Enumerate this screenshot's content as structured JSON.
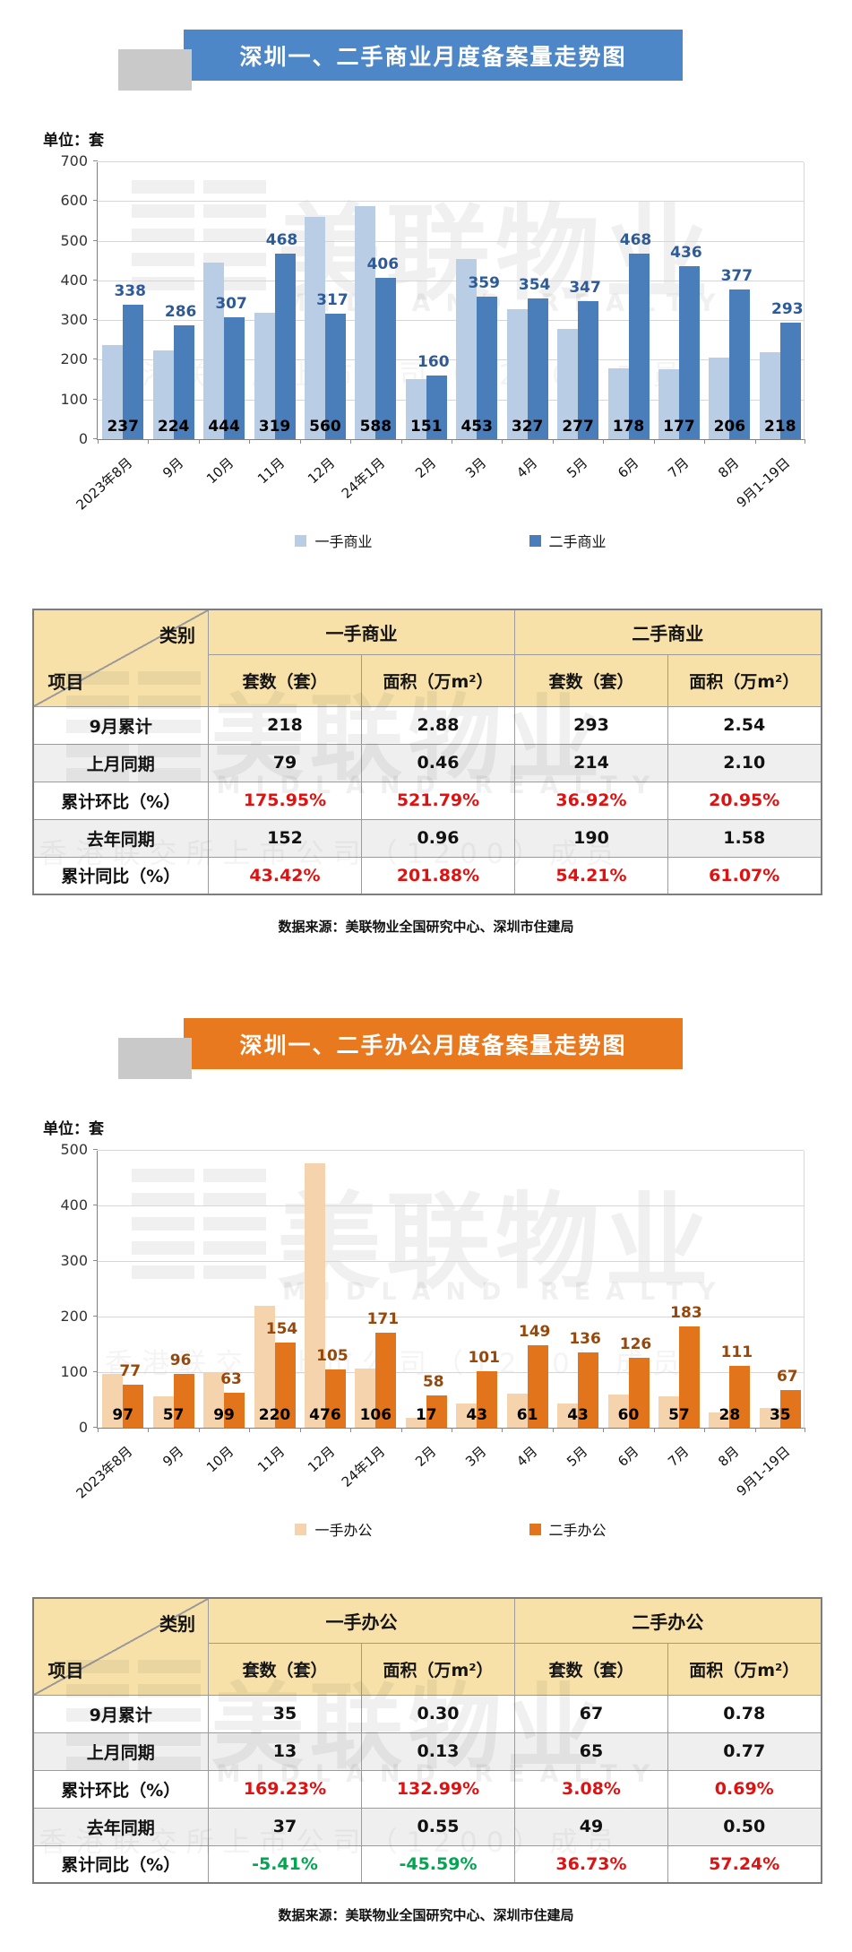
{
  "banners": [
    {
      "title": "深圳一、二手商业月度备案量走势图",
      "color": "#4e87c8"
    },
    {
      "title": "深圳一、二手办公月度备案量走势图",
      "color": "#e8791e"
    }
  ],
  "source_note": "数据来源：美联物业全国研究中心、深圳市住建局",
  "watermark": {
    "cn": "美联物业",
    "en": "MIDLAND REALTY",
    "sub": "香港联交所上市公司（1200）成员"
  },
  "chart_data": [
    {
      "type": "bar",
      "title": "深圳一、二手商业月度备案量走势图",
      "unit_label": "单位：套",
      "categories": [
        "2023年8月",
        "9月",
        "10月",
        "11月",
        "12月",
        "24年1月",
        "2月",
        "3月",
        "4月",
        "5月",
        "6月",
        "7月",
        "8月",
        "9月1-19日"
      ],
      "series": [
        {
          "name": "一手商业",
          "color": "#b9cde5",
          "label_color": "#000000",
          "label_pos": "base",
          "values": [
            237,
            224,
            444,
            319,
            560,
            588,
            151,
            453,
            327,
            277,
            178,
            177,
            206,
            218
          ]
        },
        {
          "name": "二手商业",
          "color": "#4a7ebb",
          "label_color": "#2e5b97",
          "label_pos": "top",
          "values": [
            338,
            286,
            307,
            468,
            317,
            406,
            160,
            359,
            354,
            347,
            468,
            436,
            377,
            293
          ]
        }
      ],
      "ylim": [
        0,
        700
      ],
      "yticks": [
        0,
        100,
        200,
        300,
        400,
        500,
        600,
        700
      ],
      "grid": true,
      "legend_position": "bottom"
    },
    {
      "type": "bar",
      "title": "深圳一、二手办公月度备案量走势图",
      "unit_label": "单位：套",
      "categories": [
        "2023年8月",
        "9月",
        "10月",
        "11月",
        "12月",
        "24年1月",
        "2月",
        "3月",
        "4月",
        "5月",
        "6月",
        "7月",
        "8月",
        "9月1-19日"
      ],
      "series": [
        {
          "name": "一手办公",
          "color": "#f5d3ad",
          "label_color": "#000000",
          "label_pos": "base",
          "values": [
            97,
            57,
            99,
            220,
            476,
            106,
            17,
            43,
            61,
            43,
            60,
            57,
            28,
            35
          ]
        },
        {
          "name": "二手办公",
          "color": "#e2751c",
          "label_color": "#97480b",
          "label_pos": "top",
          "values": [
            77,
            96,
            63,
            154,
            105,
            171,
            58,
            101,
            149,
            136,
            126,
            183,
            111,
            67
          ]
        }
      ],
      "ylim": [
        0,
        500
      ],
      "yticks": [
        0,
        100,
        200,
        300,
        400,
        500
      ],
      "grid": true,
      "legend_position": "bottom"
    }
  ],
  "tables": [
    {
      "corner": {
        "top": "类别",
        "bottom": "项目"
      },
      "groups": [
        "一手商业",
        "二手商业"
      ],
      "columns": [
        "套数（套）",
        "面积（万m²）",
        "套数（套）",
        "面积（万m²）"
      ],
      "rows": [
        {
          "label": "9月累计",
          "values": [
            "218",
            "2.88",
            "293",
            "2.54"
          ],
          "colors": [
            "k",
            "k",
            "k",
            "k"
          ]
        },
        {
          "label": "上月同期",
          "values": [
            "79",
            "0.46",
            "214",
            "2.10"
          ],
          "colors": [
            "k",
            "k",
            "k",
            "k"
          ]
        },
        {
          "label": "累计环比（%）",
          "values": [
            "175.95%",
            "521.79%",
            "36.92%",
            "20.95%"
          ],
          "colors": [
            "r",
            "r",
            "r",
            "r"
          ]
        },
        {
          "label": "去年同期",
          "values": [
            "152",
            "0.96",
            "190",
            "1.58"
          ],
          "colors": [
            "k",
            "k",
            "k",
            "k"
          ]
        },
        {
          "label": "累计同比（%）",
          "values": [
            "43.42%",
            "201.88%",
            "54.21%",
            "61.07%"
          ],
          "colors": [
            "r",
            "r",
            "r",
            "r"
          ]
        }
      ]
    },
    {
      "corner": {
        "top": "类别",
        "bottom": "项目"
      },
      "groups": [
        "一手办公",
        "二手办公"
      ],
      "columns": [
        "套数（套）",
        "面积（万m²）",
        "套数（套）",
        "面积（万m²）"
      ],
      "rows": [
        {
          "label": "9月累计",
          "values": [
            "35",
            "0.30",
            "67",
            "0.78"
          ],
          "colors": [
            "k",
            "k",
            "k",
            "k"
          ]
        },
        {
          "label": "上月同期",
          "values": [
            "13",
            "0.13",
            "65",
            "0.77"
          ],
          "colors": [
            "k",
            "k",
            "k",
            "k"
          ]
        },
        {
          "label": "累计环比（%）",
          "values": [
            "169.23%",
            "132.99%",
            "3.08%",
            "0.69%"
          ],
          "colors": [
            "r",
            "r",
            "r",
            "r"
          ]
        },
        {
          "label": "去年同期",
          "values": [
            "37",
            "0.55",
            "49",
            "0.50"
          ],
          "colors": [
            "k",
            "k",
            "k",
            "k"
          ]
        },
        {
          "label": "累计同比（%）",
          "values": [
            "-5.41%",
            "-45.59%",
            "36.73%",
            "57.24%"
          ],
          "colors": [
            "g",
            "g",
            "r",
            "r"
          ]
        }
      ]
    }
  ]
}
